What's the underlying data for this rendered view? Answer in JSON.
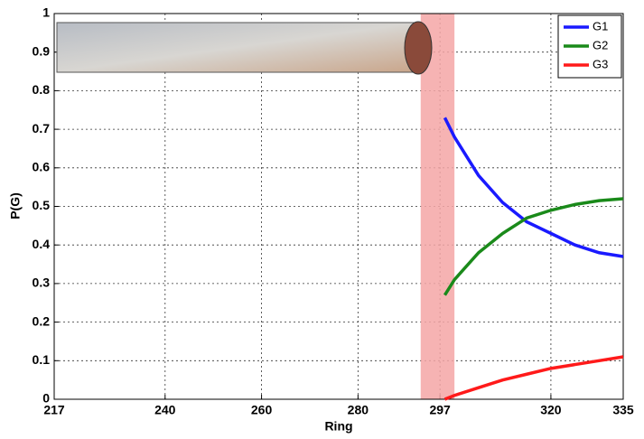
{
  "chart_data": {
    "type": "line",
    "x_label": "Ring",
    "y_label": "P(G)",
    "xlim": [
      217,
      335
    ],
    "xticks": [
      217,
      240,
      260,
      280,
      297,
      320,
      335
    ],
    "ylim": [
      0,
      1
    ],
    "yticks": [
      0,
      0.1,
      0.2,
      0.3,
      0.4,
      0.5,
      0.6,
      0.7,
      0.8,
      0.9,
      1
    ],
    "grid": true,
    "legend": "upper-right",
    "highlight": [
      293,
      300
    ],
    "highlight_color": "#f4a6a6",
    "x": [
      298,
      300,
      305,
      310,
      315,
      320,
      325,
      330,
      335
    ],
    "series": [
      {
        "name": "G1",
        "color": "#1a1aff",
        "values": [
          0.73,
          0.68,
          0.58,
          0.51,
          0.46,
          0.43,
          0.4,
          0.38,
          0.37
        ]
      },
      {
        "name": "G2",
        "color": "#1a8a1a",
        "values": [
          0.27,
          0.31,
          0.38,
          0.43,
          0.47,
          0.49,
          0.505,
          0.515,
          0.52
        ]
      },
      {
        "name": "G3",
        "color": "#ff1a1a",
        "values": [
          0.0,
          0.01,
          0.03,
          0.05,
          0.065,
          0.08,
          0.09,
          0.1,
          0.11
        ]
      }
    ]
  }
}
